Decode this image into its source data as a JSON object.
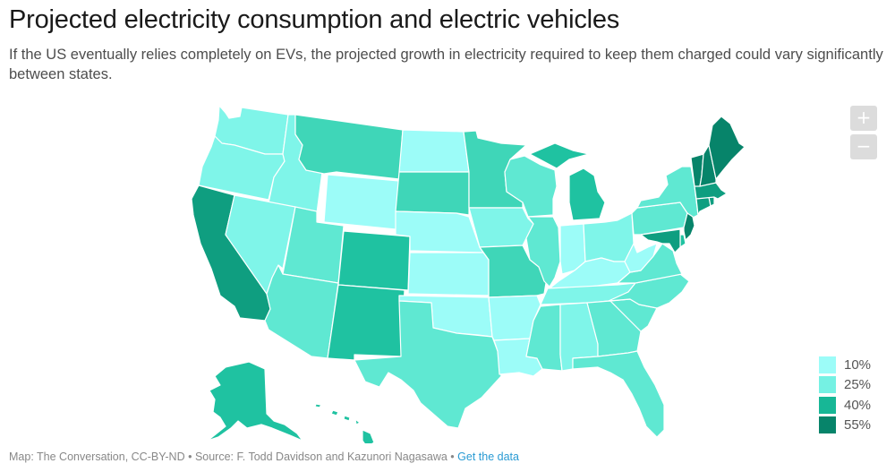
{
  "header": {
    "title": "Projected electricity consumption and electric vehicles",
    "subtitle": "If the US eventually relies completely on EVs, the projected growth in electricity required to keep them charged could vary significantly between states."
  },
  "zoom_controls": {
    "zoom_in": "+",
    "zoom_out": "−"
  },
  "legend": {
    "items": [
      {
        "label": "10%",
        "color": "#9cfcf8"
      },
      {
        "label": "25%",
        "color": "#75f1e3"
      },
      {
        "label": "40%",
        "color": "#17b796"
      },
      {
        "label": "55%",
        "color": "#07846a"
      }
    ]
  },
  "palette": {
    "c1": "#9cfcf8",
    "c2": "#7ff5e9",
    "c3": "#5fe8d2",
    "c4": "#3fd6b8",
    "c5": "#1fc2a1",
    "c6": "#0f9e80",
    "c7": "#07846a"
  },
  "states": {
    "WA": "c2",
    "OR": "c2",
    "CA": "c6",
    "ID": "c2",
    "NV": "c2",
    "MT": "c4",
    "WY": "c1",
    "UT": "c3",
    "AZ": "c3",
    "CO": "c5",
    "NM": "c5",
    "ND": "c1",
    "SD": "c4",
    "NE": "c1",
    "KS": "c1",
    "OK": "c1",
    "TX": "c3",
    "MN": "c4",
    "IA": "c2",
    "MO": "c4",
    "AR": "c1",
    "LA": "c1",
    "WI": "c3",
    "IL": "c3",
    "MI": "c5",
    "IN": "c1",
    "OH": "c2",
    "KY": "c1",
    "TN": "c2",
    "MS": "c3",
    "AL": "c2",
    "GA": "c3",
    "FL": "c3",
    "SC": "c3",
    "NC": "c3",
    "VA": "c3",
    "WV": "c1",
    "PA": "c3",
    "NY": "c3",
    "NJ": "c7",
    "DE": "c5",
    "MD": "c6",
    "CT": "c6",
    "RI": "c6",
    "MA": "c6",
    "VT": "c7",
    "NH": "c7",
    "ME": "c7",
    "AK": "c5",
    "HI": "c5"
  },
  "footer": {
    "credit": "Map: The Conversation, CC-BY-ND",
    "separator": " • ",
    "source": "Source: F. Todd Davidson and Kazunori Nagasawa",
    "link": "Get the data"
  }
}
